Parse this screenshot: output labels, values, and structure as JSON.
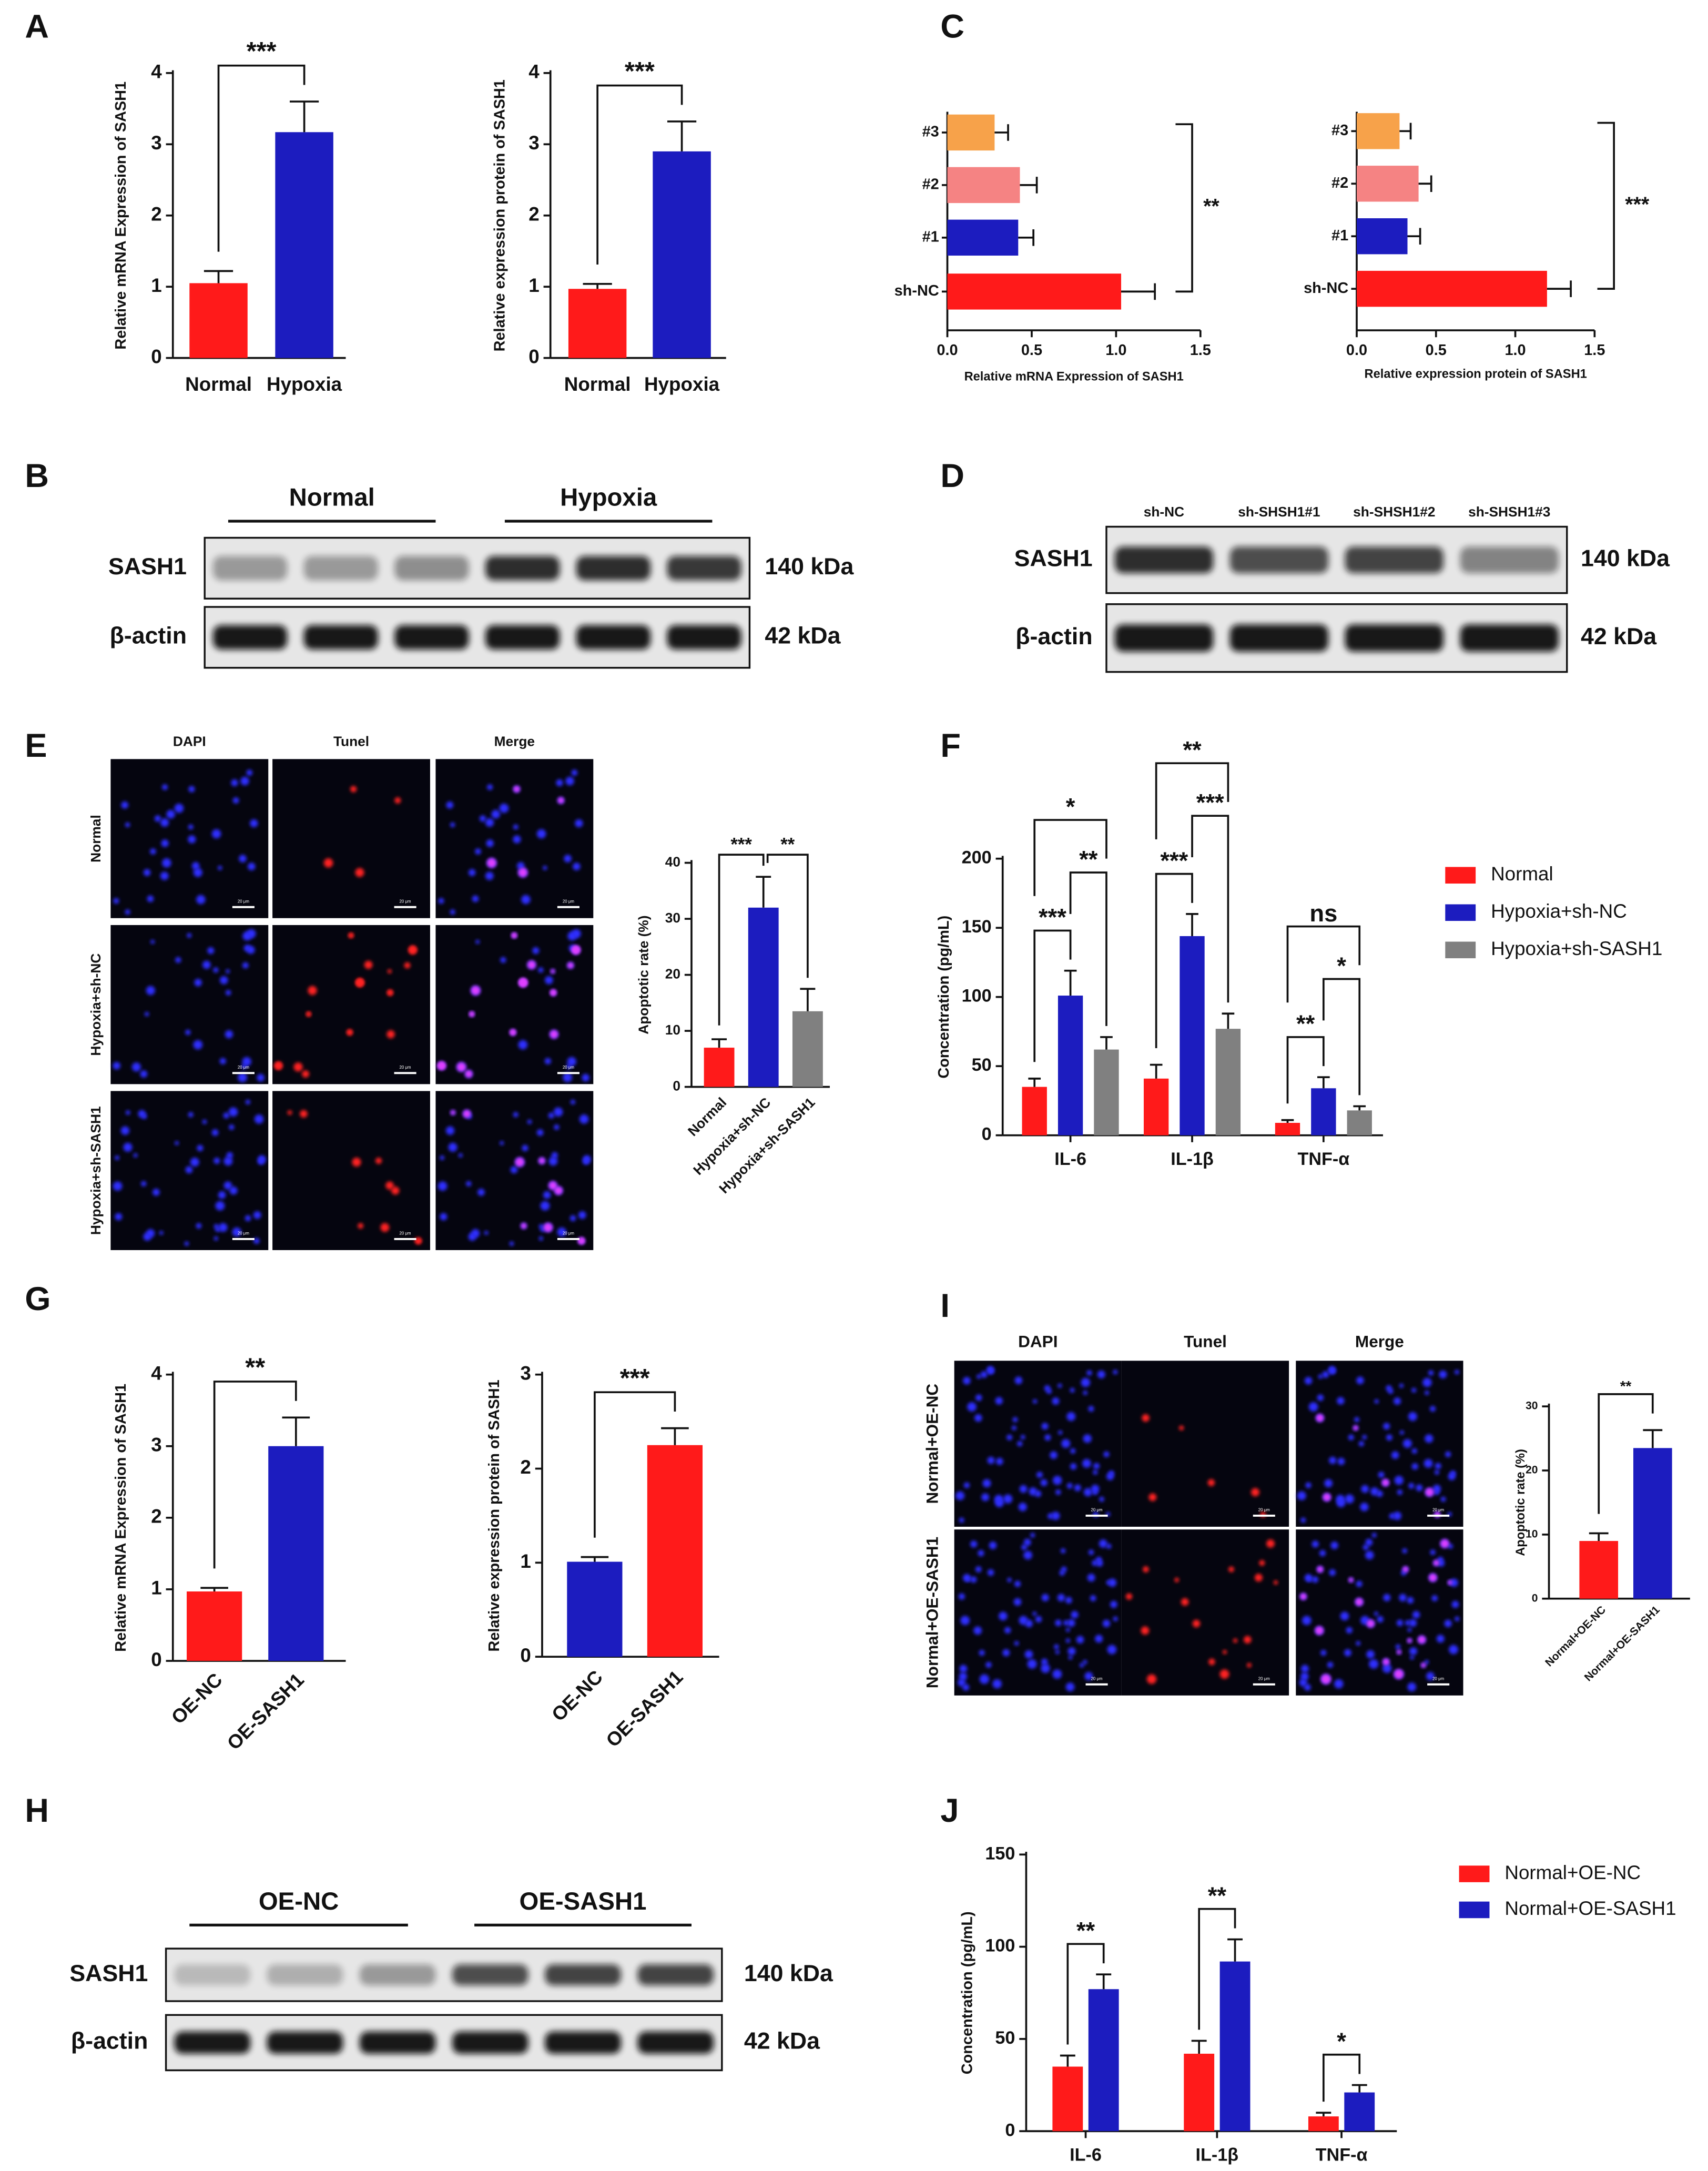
{
  "panels": [
    "A",
    "B",
    "C",
    "D",
    "E",
    "F",
    "G",
    "H",
    "I",
    "J"
  ],
  "chart_data": [
    {
      "type": "bar",
      "ylabel": "Relative mRNA Expression of SASH1",
      "categories": [
        "Normal",
        "Hypoxia"
      ],
      "values": [
        1.05,
        3.17
      ],
      "errors": [
        0.17,
        0.43
      ],
      "colors": [
        "#ff1a1a",
        "#1c1cbf"
      ],
      "ylim": [
        0,
        4
      ],
      "yticks": [
        0,
        1,
        2,
        3,
        4
      ],
      "significance": "***"
    },
    {
      "type": "bar",
      "ylabel": "Relative expression protein of SASH1",
      "categories": [
        "Normal",
        "Hypoxia"
      ],
      "values": [
        0.97,
        2.9
      ],
      "errors": [
        0.07,
        0.42
      ],
      "colors": [
        "#ff1a1a",
        "#1c1cbf"
      ],
      "ylim": [
        0,
        4
      ],
      "yticks": [
        0,
        1,
        2,
        3,
        4
      ],
      "significance": "***"
    },
    {
      "type": "bar",
      "orientation": "horizontal",
      "xlabel": "Relative mRNA Expression of SASH1",
      "categories": [
        "#3",
        "#2",
        "#1",
        "sh-NC"
      ],
      "values": [
        0.28,
        0.43,
        0.42,
        1.03
      ],
      "errors": [
        0.08,
        0.1,
        0.09,
        0.2
      ],
      "colors": [
        "#f7a24a",
        "#f58383",
        "#1c1cbf",
        "#ff1a1a"
      ],
      "xlim": [
        0,
        1.5
      ],
      "xticks": [
        {
          "value": 0,
          "label": "0.0"
        },
        0.5,
        {
          "value": 1,
          "label": "1.0"
        },
        1.5
      ],
      "significance": "**"
    },
    {
      "type": "bar",
      "orientation": "horizontal",
      "xlabel": "Relative expression protein of SASH1",
      "categories": [
        "#3",
        "#2",
        "#1",
        "sh-NC"
      ],
      "values": [
        0.27,
        0.39,
        0.32,
        1.2
      ],
      "errors": [
        0.07,
        0.08,
        0.08,
        0.15
      ],
      "colors": [
        "#f7a24a",
        "#f58383",
        "#1c1cbf",
        "#ff1a1a"
      ],
      "xlim": [
        0,
        1.5
      ],
      "xticks": [
        {
          "value": 0,
          "label": "0.0"
        },
        0.5,
        {
          "value": 1,
          "label": "1.0"
        },
        1.5
      ],
      "significance": "***"
    },
    {
      "type": "bar",
      "ylabel": "Apoptotic rate (%)",
      "categories": [
        "Normal",
        "Hypoxia+sh-NC",
        "Hypoxia+sh-SASH1"
      ],
      "values": [
        7,
        32,
        13.5
      ],
      "errors": [
        1.5,
        5.5,
        4
      ],
      "colors": [
        "#ff1a1a",
        "#1c1cbf",
        "#808080"
      ],
      "ylim": [
        0,
        40
      ],
      "yticks": [
        0,
        10,
        20,
        30,
        40
      ],
      "significance": [
        "***",
        "**"
      ]
    },
    {
      "type": "grouped_bar",
      "ylabel": "Concentration (pg/mL)",
      "categories": [
        "IL-6",
        "IL-1β",
        "TNF-α"
      ],
      "series": [
        {
          "name": "Normal",
          "color": "#ff1a1a",
          "values": [
            35,
            41,
            9
          ],
          "errors": [
            6,
            10,
            2
          ]
        },
        {
          "name": "Hypoxia+sh-NC",
          "color": "#1c1cbf",
          "values": [
            101,
            144,
            34
          ],
          "errors": [
            18,
            16,
            8
          ]
        },
        {
          "name": "Hypoxia+sh-SASH1",
          "color": "#808080",
          "values": [
            62,
            77,
            18
          ],
          "errors": [
            9,
            11,
            3
          ]
        }
      ],
      "ylim": [
        0,
        200
      ],
      "yticks": [
        0,
        50,
        100,
        150,
        200
      ],
      "significance": [
        [
          "***",
          "**",
          "*"
        ],
        [
          "***",
          "***",
          "**"
        ],
        [
          "**",
          "*",
          "ns"
        ]
      ]
    },
    {
      "type": "bar",
      "ylabel": "Relative mRNA Expression of SASH1",
      "categories": [
        "OE-NC",
        "OE-SASH1"
      ],
      "values": [
        0.97,
        3.0
      ],
      "errors": [
        0.05,
        0.4
      ],
      "colors": [
        "#ff1a1a",
        "#1c1cbf"
      ],
      "ylim": [
        0,
        4
      ],
      "yticks": [
        0,
        1,
        2,
        3,
        4
      ],
      "significance": "**"
    },
    {
      "type": "bar",
      "ylabel": "Relative expression protein of SASH1",
      "categories": [
        "OE-NC",
        "OE-SASH1"
      ],
      "values": [
        1.01,
        2.25
      ],
      "errors": [
        0.05,
        0.18
      ],
      "colors": [
        "#1c1cbf",
        "#ff1a1a"
      ],
      "ylim": [
        0,
        3
      ],
      "yticks": [
        0,
        1,
        2,
        3
      ],
      "significance": "***"
    },
    {
      "type": "bar",
      "ylabel": "Apoptotic rate (%)",
      "categories": [
        "Normal+OE-NC",
        "Normal+OE-SASH1"
      ],
      "values": [
        9,
        23.5
      ],
      "errors": [
        1.2,
        2.8
      ],
      "colors": [
        "#ff1a1a",
        "#1c1cbf"
      ],
      "ylim": [
        0,
        30
      ],
      "yticks": [
        0,
        10,
        20,
        30
      ],
      "significance": "**"
    },
    {
      "type": "grouped_bar",
      "ylabel": "Concentration (pg/mL)",
      "categories": [
        "IL-6",
        "IL-1β",
        "TNF-α"
      ],
      "series": [
        {
          "name": "Normal+OE-NC",
          "color": "#ff1a1a",
          "values": [
            35,
            42,
            8
          ],
          "errors": [
            6,
            7,
            2
          ]
        },
        {
          "name": "Normal+OE-SASH1",
          "color": "#1c1cbf",
          "values": [
            77,
            92,
            21
          ],
          "errors": [
            8,
            12,
            4
          ]
        }
      ],
      "ylim": [
        0,
        150
      ],
      "yticks": [
        0,
        50,
        100,
        150
      ],
      "significance": [
        "**",
        "**",
        "*"
      ]
    }
  ],
  "blots": [
    {
      "groups": [
        "Normal",
        "Hypoxia"
      ],
      "rows": [
        {
          "protein": "SASH1",
          "size": "140 kDa"
        },
        {
          "protein": "β-actin",
          "size": "42 kDa"
        }
      ]
    },
    {
      "lanes": [
        "sh-NC",
        "sh-SHSH1#1",
        "sh-SHSH1#2",
        "sh-SHSH1#3"
      ],
      "rows": [
        {
          "protein": "SASH1",
          "size": "140 kDa"
        },
        {
          "protein": "β-actin",
          "size": "42 kDa"
        }
      ]
    },
    {
      "groups": [
        "OE-NC",
        "OE-SASH1"
      ],
      "rows": [
        {
          "protein": "SASH1",
          "size": "140 kDa"
        },
        {
          "protein": "β-actin",
          "size": "42 kDa"
        }
      ]
    }
  ],
  "micrographs": [
    {
      "columns": [
        "DAPI",
        "Tunel",
        "Merge"
      ],
      "rows": [
        "Normal",
        "Hypoxia+sh-NC",
        "Hypoxia+sh-SASH1"
      ],
      "scale_bar": "20 μm"
    },
    {
      "columns": [
        "DAPI",
        "Tunel",
        "Merge"
      ],
      "rows": [
        "Normal+OE-NC",
        "Normal+OE-SASH1"
      ],
      "scale_bar": "20 μm"
    }
  ]
}
